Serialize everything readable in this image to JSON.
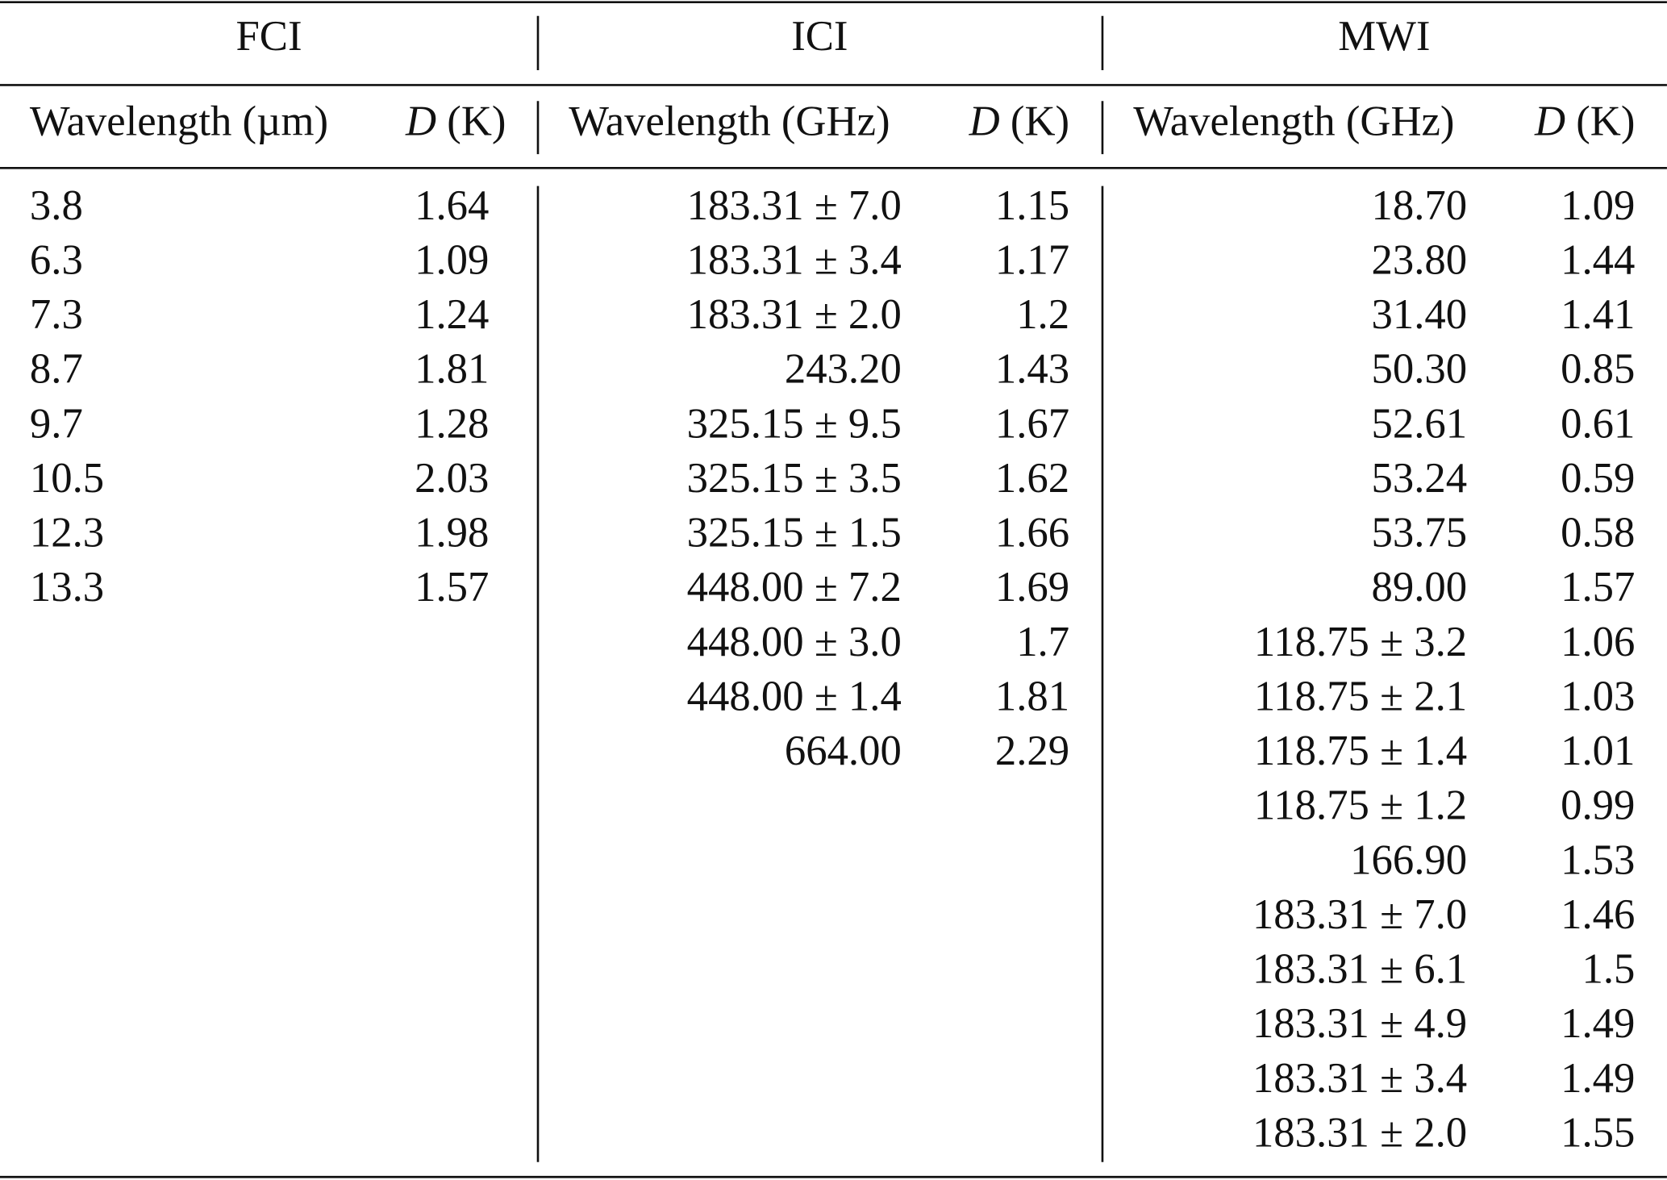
{
  "table": {
    "groups": [
      {
        "title": "FCI",
        "columns": [
          {
            "label": "Wavelength (µm)"
          },
          {
            "symbol": "D",
            "label": "(K)"
          }
        ],
        "rows": [
          [
            "3.8",
            "1.64"
          ],
          [
            "6.3",
            "1.09"
          ],
          [
            "7.3",
            "1.24"
          ],
          [
            "8.7",
            "1.81"
          ],
          [
            "9.7",
            "1.28"
          ],
          [
            "10.5",
            "2.03"
          ],
          [
            "12.3",
            "1.98"
          ],
          [
            "13.3",
            "1.57"
          ]
        ]
      },
      {
        "title": "ICI",
        "columns": [
          {
            "label": "Wavelength (GHz)"
          },
          {
            "symbol": "D",
            "label": "(K)"
          }
        ],
        "rows": [
          [
            "183.31 ± 7.0",
            "1.15"
          ],
          [
            "183.31 ± 3.4",
            "1.17"
          ],
          [
            "183.31 ± 2.0",
            "1.2"
          ],
          [
            "243.20",
            "1.43"
          ],
          [
            "325.15 ± 9.5",
            "1.67"
          ],
          [
            "325.15 ± 3.5",
            "1.62"
          ],
          [
            "325.15 ± 1.5",
            "1.66"
          ],
          [
            "448.00 ± 7.2",
            "1.69"
          ],
          [
            "448.00 ± 3.0",
            "1.7"
          ],
          [
            "448.00 ± 1.4",
            "1.81"
          ],
          [
            "664.00",
            "2.29"
          ]
        ]
      },
      {
        "title": "MWI",
        "columns": [
          {
            "label": "Wavelength (GHz)"
          },
          {
            "symbol": "D",
            "label": "(K)"
          }
        ],
        "rows": [
          [
            "18.70",
            "1.09"
          ],
          [
            "23.80",
            "1.44"
          ],
          [
            "31.40",
            "1.41"
          ],
          [
            "50.30",
            "0.85"
          ],
          [
            "52.61",
            "0.61"
          ],
          [
            "53.24",
            "0.59"
          ],
          [
            "53.75",
            "0.58"
          ],
          [
            "89.00",
            "1.57"
          ],
          [
            "118.75 ± 3.2",
            "1.06"
          ],
          [
            "118.75 ± 2.1",
            "1.03"
          ],
          [
            "118.75 ± 1.4",
            "1.01"
          ],
          [
            "118.75 ± 1.2",
            "0.99"
          ],
          [
            "166.90",
            "1.53"
          ],
          [
            "183.31 ± 7.0",
            "1.46"
          ],
          [
            "183.31 ± 6.1",
            "1.5"
          ],
          [
            "183.31 ± 4.9",
            "1.49"
          ],
          [
            "183.31 ± 3.4",
            "1.49"
          ],
          [
            "183.31 ± 2.0",
            "1.55"
          ]
        ]
      }
    ]
  }
}
